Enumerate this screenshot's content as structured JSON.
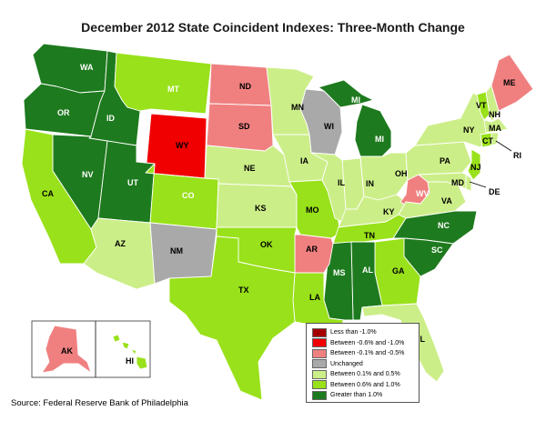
{
  "title": "December 2012 State Coincident Indexes: Three-Month Change",
  "source": "Source: Federal Reserve Bank of Philadelphia",
  "legend": [
    {
      "label": "Less than -1.0%",
      "color": "#a50000"
    },
    {
      "label": "Between -0.6% and -1.0%",
      "color": "#f00000"
    },
    {
      "label": "Between -0.1% and -0.5%",
      "color": "#f08080"
    },
    {
      "label": "Unchanged",
      "color": "#a9a9a9"
    },
    {
      "label": "Between 0.1% and 0.5%",
      "color": "#ccee88"
    },
    {
      "label": "Between 0.6% and 1.0%",
      "color": "#99e11a"
    },
    {
      "label": "Greater than 1.0%",
      "color": "#1e7a1e"
    }
  ],
  "states": {
    "WA": {
      "label": "WA",
      "category": "Greater than 1.0%"
    },
    "OR": {
      "label": "OR",
      "category": "Greater than 1.0%"
    },
    "ID": {
      "label": "ID",
      "category": "Greater than 1.0%"
    },
    "MT": {
      "label": "MT",
      "category": "Between 0.6% and 1.0%"
    },
    "WY": {
      "label": "WY",
      "category": "Between -0.6% and -1.0%"
    },
    "ND": {
      "label": "ND",
      "category": "Between -0.1% and -0.5%"
    },
    "SD": {
      "label": "SD",
      "category": "Between -0.1% and -0.5%"
    },
    "MN": {
      "label": "MN",
      "category": "Between 0.1% and 0.5%"
    },
    "WI": {
      "label": "WI",
      "category": "Unchanged"
    },
    "MI": {
      "label": "MI",
      "category": "Greater than 1.0%"
    },
    "NV": {
      "label": "NV",
      "category": "Greater than 1.0%"
    },
    "UT": {
      "label": "UT",
      "category": "Greater than 1.0%"
    },
    "CA": {
      "label": "CA",
      "category": "Between 0.6% and 1.0%"
    },
    "CO": {
      "label": "CO",
      "category": "Between 0.6% and 1.0%"
    },
    "NE": {
      "label": "NE",
      "category": "Between 0.1% and 0.5%"
    },
    "IA": {
      "label": "IA",
      "category": "Between 0.1% and 0.5%"
    },
    "KS": {
      "label": "KS",
      "category": "Between 0.1% and 0.5%"
    },
    "MO": {
      "label": "MO",
      "category": "Between 0.6% and 1.0%"
    },
    "IL": {
      "label": "IL",
      "category": "Between 0.1% and 0.5%"
    },
    "IN": {
      "label": "IN",
      "category": "Between 0.1% and 0.5%"
    },
    "OH": {
      "label": "OH",
      "category": "Between 0.1% and 0.5%"
    },
    "KY": {
      "label": "KY",
      "category": "Between 0.1% and 0.5%"
    },
    "WV": {
      "label": "WV",
      "category": "Between -0.1% and -0.5%"
    },
    "PA": {
      "label": "PA",
      "category": "Between 0.1% and 0.5%"
    },
    "NY": {
      "label": "NY",
      "category": "Between 0.1% and 0.5%"
    },
    "VT": {
      "label": "VT",
      "category": "Between 0.6% and 1.0%"
    },
    "NH": {
      "label": "NH",
      "category": "Between 0.1% and 0.5%"
    },
    "ME": {
      "label": "ME",
      "category": "Between -0.1% and -0.5%"
    },
    "MA": {
      "label": "MA",
      "category": "Between 0.1% and 0.5%"
    },
    "CT": {
      "label": "CT",
      "category": "Between 0.6% and 1.0%"
    },
    "RI": {
      "label": "RI",
      "category": "Between 0.1% and 0.5%"
    },
    "NJ": {
      "label": "NJ",
      "category": "Between 0.6% and 1.0%"
    },
    "DE": {
      "label": "DE",
      "category": "Between 0.1% and 0.5%"
    },
    "MD": {
      "label": "MD",
      "category": "Between 0.1% and 0.5%"
    },
    "VA": {
      "label": "VA",
      "category": "Between 0.1% and 0.5%"
    },
    "NC": {
      "label": "NC",
      "category": "Greater than 1.0%"
    },
    "SC": {
      "label": "SC",
      "category": "Greater than 1.0%"
    },
    "TN": {
      "label": "TN",
      "category": "Between 0.6% and 1.0%"
    },
    "GA": {
      "label": "GA",
      "category": "Between 0.6% and 1.0%"
    },
    "AL": {
      "label": "AL",
      "category": "Greater than 1.0%"
    },
    "MS": {
      "label": "MS",
      "category": "Greater than 1.0%"
    },
    "FL": {
      "label": "FL",
      "category": "Between 0.1% and 0.5%"
    },
    "AR": {
      "label": "AR",
      "category": "Between -0.1% and -0.5%"
    },
    "LA": {
      "label": "LA",
      "category": "Between 0.6% and 1.0%"
    },
    "OK": {
      "label": "OK",
      "category": "Between 0.6% and 1.0%"
    },
    "TX": {
      "label": "TX",
      "category": "Between 0.6% and 1.0%"
    },
    "NM": {
      "label": "NM",
      "category": "Unchanged"
    },
    "AZ": {
      "label": "AZ",
      "category": "Between 0.1% and 0.5%"
    },
    "AK": {
      "label": "AK",
      "category": "Between -0.1% and -0.5%"
    },
    "HI": {
      "label": "HI",
      "category": "Between 0.6% and 1.0%"
    }
  }
}
